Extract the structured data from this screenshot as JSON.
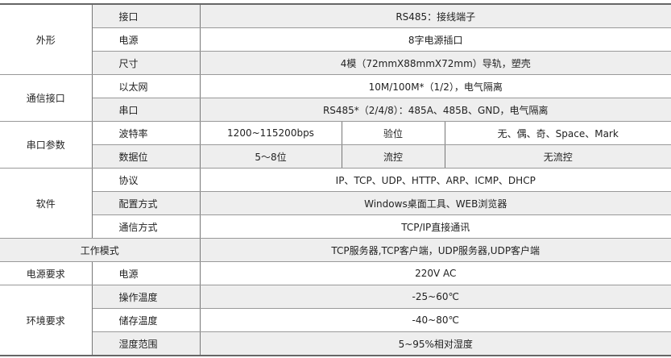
{
  "spec_table": {
    "rows": [
      {
        "group": "外形",
        "span": 3,
        "label": "接口",
        "value": "RS485：接线端子"
      },
      {
        "label": "电源",
        "value": "8字电源插口"
      },
      {
        "label": "尺寸",
        "value": "4模（72mmX88mmX72mm）导轨，塑壳"
      },
      {
        "group": "通信接口",
        "span": 2,
        "label": "以太网",
        "value": "10M/100M*（1/2），电气隔离"
      },
      {
        "label": "串口",
        "value": "RS485*（2/4/8）：485A、485B、GND，电气隔离"
      },
      {
        "group": "串口参数",
        "span": 2,
        "label": "波特率",
        "cells": [
          "1200~115200bps",
          "验位",
          "无、偶、奇、Space、Mark"
        ]
      },
      {
        "label": "数据位",
        "cells": [
          "5～8位",
          "流控",
          "无流控"
        ]
      },
      {
        "group": "软件",
        "span": 3,
        "label": "协议",
        "value": "IP、TCP、UDP、HTTP、ARP、ICMP、DHCP"
      },
      {
        "label": "配置方式",
        "value": "Windows桌面工具、WEB浏览器"
      },
      {
        "label": "通信方式",
        "value": "TCP/IP直接通讯"
      },
      {
        "merged": "工作模式",
        "value": "TCP服务器,TCP客户端，UDP服务器,UDP客户端"
      },
      {
        "group": "电源要求",
        "span": 1,
        "label": "电源",
        "value": "220V AC"
      },
      {
        "group": "环境要求",
        "span": 3,
        "label": "操作温度",
        "value": "-25~60℃"
      },
      {
        "label": "储存温度",
        "value": "-40~80℃"
      },
      {
        "label": "湿度范围",
        "value": "5~95%相对湿度"
      }
    ]
  }
}
